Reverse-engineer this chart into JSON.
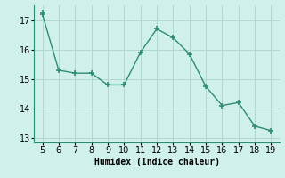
{
  "x": [
    5,
    5,
    6,
    7,
    8,
    9,
    10,
    11,
    12,
    13,
    14,
    15,
    16,
    17,
    18,
    19
  ],
  "y": [
    17.25,
    17.2,
    15.3,
    15.2,
    15.2,
    14.8,
    14.8,
    15.9,
    16.7,
    16.4,
    15.85,
    14.75,
    14.1,
    14.2,
    13.4,
    13.25
  ],
  "line_color": "#2e8b74",
  "marker": "+",
  "bg_color": "#d0f0ec",
  "grid_color": "#b0d8d0",
  "xlabel": "Humidex (Indice chaleur)",
  "xlim": [
    4.5,
    19.5
  ],
  "ylim": [
    12.85,
    17.5
  ],
  "yticks": [
    13,
    14,
    15,
    16,
    17
  ],
  "xticks": [
    5,
    6,
    7,
    8,
    9,
    10,
    11,
    12,
    13,
    14,
    15,
    16,
    17,
    18,
    19
  ],
  "xlabel_fontsize": 7,
  "tick_fontsize": 7,
  "line_width": 1.0,
  "marker_size": 4,
  "marker_ew": 1.2
}
